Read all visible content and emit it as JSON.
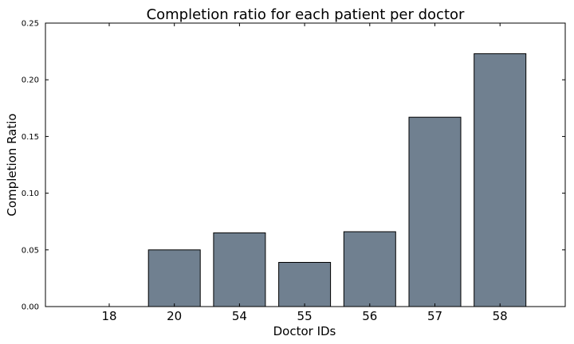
{
  "chart_data": {
    "type": "bar",
    "title": "Completion ratio for each patient per doctor",
    "xlabel": "Doctor IDs",
    "ylabel": "Completion Ratio",
    "categories": [
      "18",
      "20",
      "54",
      "55",
      "56",
      "57",
      "58"
    ],
    "values": [
      0.0,
      0.05,
      0.065,
      0.039,
      0.066,
      0.167,
      0.223
    ],
    "ylim": [
      0,
      0.25
    ],
    "yticks": [
      "0.00",
      "0.05",
      "0.10",
      "0.15",
      "0.20",
      "0.25"
    ],
    "grid": false,
    "bar_color": "#708090",
    "edge_color": "#000000"
  }
}
